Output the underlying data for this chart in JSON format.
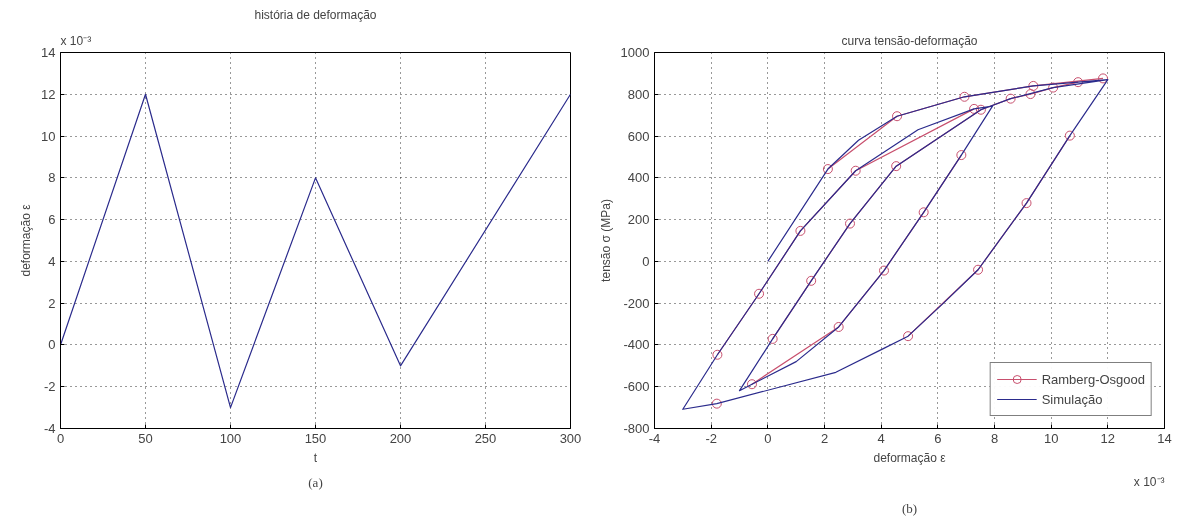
{
  "chart_data": [
    {
      "type": "line",
      "title": "história de deformação",
      "xlabel": "t",
      "ylabel": "deformação ε",
      "x": [
        0,
        50,
        100,
        150,
        200,
        300
      ],
      "series": [
        {
          "color": "#2b2b8c",
          "values": [
            0,
            12,
            -3,
            8,
            -1,
            12
          ]
        }
      ],
      "xlim": [
        0,
        300
      ],
      "xticks": [
        0,
        50,
        100,
        150,
        200,
        250,
        300
      ],
      "ylim": [
        -4,
        14
      ],
      "yticks": [
        -4,
        -2,
        0,
        2,
        4,
        6,
        8,
        10,
        12,
        14
      ],
      "grid": true,
      "legend": false,
      "marker": "none",
      "line_style": "solid",
      "annotations": [
        "x 10⁻³",
        "(a)"
      ]
    },
    {
      "type": "line",
      "title": "curva tensão-deformação",
      "xlabel": "deformação ε",
      "ylabel": "tensão σ (MPa)",
      "series": [
        {
          "name": "Ramberg-Osgood",
          "color": "#c8506e",
          "marker": "circle",
          "x": [
            2.12,
            4.56,
            6.94,
            9.37,
            11.83,
            null,
            10.66,
            9.13,
            7.42,
            4.95,
            null,
            -1.8,
            null,
            -1.78,
            -0.31,
            1.15,
            3.1,
            7.28,
            null,
            6.83,
            5.5,
            4.1,
            2.5,
            -0.56,
            null,
            0.17,
            1.53,
            2.9,
            4.53,
            7.52,
            8.57,
            9.27,
            10.07,
            10.95
          ],
          "values": [
            442,
            695,
            788,
            840,
            876,
            null,
            602,
            279,
            -40,
            -358,
            null,
            -681,
            null,
            -447,
            -155,
            146,
            434,
            730,
            null,
            509,
            235,
            -44,
            -314,
            -588,
            null,
            -371,
            -93,
            181,
            456,
            726,
            779,
            801,
            832,
            858
          ]
        },
        {
          "name": "Simulação",
          "color": "#2b2b8c",
          "marker": "none",
          "x": [
            0,
            2.12,
            3.2,
            4.56,
            6.94,
            9.37,
            12,
            10.66,
            9.13,
            7.42,
            6.2,
            4.95,
            4.04,
            2.4,
            -1.8,
            -3,
            -1.78,
            -0.31,
            1.15,
            3.1,
            5.3,
            7.28,
            7.93,
            6.83,
            5.5,
            4.1,
            2.5,
            1.0,
            -0.56,
            -1,
            0.17,
            1.53,
            2.9,
            4.53,
            7.52,
            8.57,
            10.07,
            12
          ],
          "values": [
            0,
            442,
            580,
            695,
            788,
            840,
            870,
            602,
            279,
            -40,
            -200,
            -358,
            -420,
            -531,
            -681,
            -708,
            -447,
            -155,
            146,
            434,
            630,
            730,
            743,
            509,
            235,
            -44,
            -314,
            -480,
            -588,
            -619,
            -371,
            -93,
            181,
            456,
            726,
            779,
            832,
            870
          ]
        }
      ],
      "xlim": [
        -4,
        14
      ],
      "xticks": [
        -4,
        -2,
        0,
        2,
        4,
        6,
        8,
        10,
        12,
        14
      ],
      "ylim": [
        -800,
        1000
      ],
      "yticks": [
        -800,
        -600,
        -400,
        -200,
        0,
        200,
        400,
        600,
        800,
        1000
      ],
      "grid": true,
      "legend": "bottom right",
      "line_style": "solid",
      "annotations": [
        "x 10⁻³",
        "(b)"
      ]
    }
  ]
}
